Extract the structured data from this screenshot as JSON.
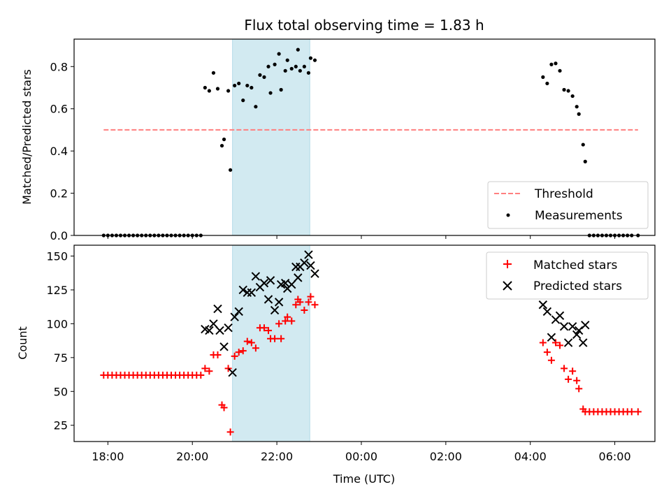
{
  "chart_data": [
    {
      "type": "scatter",
      "title": "Flux total observing time = 1.83 h",
      "ylabel": "Matched/Predicted stars",
      "xlabel": "",
      "x_units": "hours since 18:00 UTC (x axis spans 17:12 to 06:56)",
      "xlim": [
        -0.8,
        12.95
      ],
      "ylim": [
        0.0,
        0.93
      ],
      "yticks": [
        "0.0",
        "0.2",
        "0.4",
        "0.6",
        "0.8"
      ],
      "shaded_span": [
        2.95,
        4.78
      ],
      "threshold": {
        "name": "Threshold",
        "value": 0.5,
        "x_range": [
          -0.1,
          12.55
        ],
        "color": "#ff7f7f"
      },
      "legend": {
        "position": "lower-right",
        "entries": [
          "Threshold",
          "Measurements"
        ]
      },
      "series": [
        {
          "name": "Measurements",
          "marker": "dot",
          "color": "#000000",
          "points": [
            [
              -0.1,
              0
            ],
            [
              0.0,
              0
            ],
            [
              0.1,
              0
            ],
            [
              0.2,
              0
            ],
            [
              0.3,
              0
            ],
            [
              0.4,
              0
            ],
            [
              0.5,
              0
            ],
            [
              0.6,
              0
            ],
            [
              0.7,
              0
            ],
            [
              0.8,
              0
            ],
            [
              0.9,
              0
            ],
            [
              1.0,
              0
            ],
            [
              1.1,
              0
            ],
            [
              1.2,
              0
            ],
            [
              1.3,
              0
            ],
            [
              1.4,
              0
            ],
            [
              1.5,
              0
            ],
            [
              1.6,
              0
            ],
            [
              1.7,
              0
            ],
            [
              1.8,
              0
            ],
            [
              1.9,
              0
            ],
            [
              2.0,
              0
            ],
            [
              2.1,
              0
            ],
            [
              2.2,
              0
            ],
            [
              2.3,
              0.7
            ],
            [
              2.4,
              0.685
            ],
            [
              2.5,
              0.77
            ],
            [
              2.6,
              0.695
            ],
            [
              2.7,
              0.425
            ],
            [
              2.75,
              0.455
            ],
            [
              2.85,
              0.685
            ],
            [
              2.9,
              0.31
            ],
            [
              3.0,
              0.71
            ],
            [
              3.1,
              0.72
            ],
            [
              3.2,
              0.64
            ],
            [
              3.3,
              0.71
            ],
            [
              3.4,
              0.7
            ],
            [
              3.5,
              0.61
            ],
            [
              3.6,
              0.76
            ],
            [
              3.7,
              0.75
            ],
            [
              3.8,
              0.8
            ],
            [
              3.85,
              0.675
            ],
            [
              3.95,
              0.81
            ],
            [
              4.05,
              0.86
            ],
            [
              4.1,
              0.69
            ],
            [
              4.2,
              0.78
            ],
            [
              4.25,
              0.83
            ],
            [
              4.35,
              0.79
            ],
            [
              4.45,
              0.8
            ],
            [
              4.5,
              0.88
            ],
            [
              4.55,
              0.78
            ],
            [
              4.65,
              0.8
            ],
            [
              4.75,
              0.77
            ],
            [
              4.8,
              0.84
            ],
            [
              4.9,
              0.83
            ],
            [
              10.3,
              0.75
            ],
            [
              10.4,
              0.72
            ],
            [
              10.5,
              0.81
            ],
            [
              10.6,
              0.815
            ],
            [
              10.7,
              0.78
            ],
            [
              10.8,
              0.69
            ],
            [
              10.9,
              0.685
            ],
            [
              11.0,
              0.66
            ],
            [
              11.1,
              0.61
            ],
            [
              11.15,
              0.575
            ],
            [
              11.25,
              0.43
            ],
            [
              11.3,
              0.35
            ],
            [
              11.4,
              0
            ],
            [
              11.5,
              0
            ],
            [
              11.6,
              0
            ],
            [
              11.7,
              0
            ],
            [
              11.8,
              0
            ],
            [
              11.9,
              0
            ],
            [
              12.0,
              0
            ],
            [
              12.1,
              0
            ],
            [
              12.2,
              0
            ],
            [
              12.3,
              0
            ],
            [
              12.4,
              0
            ],
            [
              12.55,
              0
            ]
          ]
        }
      ]
    },
    {
      "type": "scatter",
      "title": "",
      "ylabel": "Count",
      "xlabel": "Time (UTC)",
      "x_units": "hours since 18:00 UTC (x axis spans 17:12 to 06:56)",
      "xlim": [
        -0.8,
        12.95
      ],
      "ylim": [
        13,
        158
      ],
      "yticks": [
        "25",
        "50",
        "75",
        "100",
        "125",
        "150"
      ],
      "xticks": [
        "18:00",
        "20:00",
        "22:00",
        "00:00",
        "02:00",
        "04:00",
        "06:00"
      ],
      "shaded_span": [
        2.95,
        4.78
      ],
      "legend": {
        "position": "top-right",
        "entries": [
          "Matched stars",
          "Predicted stars"
        ]
      },
      "series": [
        {
          "name": "Matched stars",
          "marker": "plus",
          "color": "#ff0000",
          "points": [
            [
              -0.1,
              62
            ],
            [
              0.0,
              62
            ],
            [
              0.1,
              62
            ],
            [
              0.2,
              62
            ],
            [
              0.3,
              62
            ],
            [
              0.4,
              62
            ],
            [
              0.5,
              62
            ],
            [
              0.6,
              62
            ],
            [
              0.7,
              62
            ],
            [
              0.8,
              62
            ],
            [
              0.9,
              62
            ],
            [
              1.0,
              62
            ],
            [
              1.1,
              62
            ],
            [
              1.2,
              62
            ],
            [
              1.3,
              62
            ],
            [
              1.4,
              62
            ],
            [
              1.5,
              62
            ],
            [
              1.6,
              62
            ],
            [
              1.7,
              62
            ],
            [
              1.8,
              62
            ],
            [
              1.9,
              62
            ],
            [
              2.0,
              62
            ],
            [
              2.1,
              62
            ],
            [
              2.2,
              62
            ],
            [
              2.3,
              67
            ],
            [
              2.4,
              65
            ],
            [
              2.5,
              77
            ],
            [
              2.6,
              77
            ],
            [
              2.7,
              40
            ],
            [
              2.75,
              38
            ],
            [
              2.85,
              67
            ],
            [
              2.9,
              20
            ],
            [
              3.0,
              76
            ],
            [
              3.1,
              79
            ],
            [
              3.2,
              80
            ],
            [
              3.3,
              87
            ],
            [
              3.4,
              86
            ],
            [
              3.5,
              82
            ],
            [
              3.6,
              97
            ],
            [
              3.7,
              97
            ],
            [
              3.8,
              95
            ],
            [
              3.85,
              89
            ],
            [
              3.95,
              89
            ],
            [
              4.05,
              100
            ],
            [
              4.1,
              89
            ],
            [
              4.2,
              102
            ],
            [
              4.25,
              105
            ],
            [
              4.35,
              102
            ],
            [
              4.45,
              114
            ],
            [
              4.5,
              118
            ],
            [
              4.55,
              116
            ],
            [
              4.65,
              110
            ],
            [
              4.75,
              116
            ],
            [
              4.8,
              120
            ],
            [
              4.9,
              114
            ],
            [
              10.3,
              86
            ],
            [
              10.4,
              79
            ],
            [
              10.5,
              73
            ],
            [
              10.6,
              86
            ],
            [
              10.7,
              84
            ],
            [
              10.8,
              67
            ],
            [
              10.9,
              59
            ],
            [
              11.0,
              65
            ],
            [
              11.1,
              58
            ],
            [
              11.15,
              52
            ],
            [
              11.25,
              37
            ],
            [
              11.3,
              35
            ],
            [
              11.4,
              35
            ],
            [
              11.5,
              35
            ],
            [
              11.6,
              35
            ],
            [
              11.7,
              35
            ],
            [
              11.8,
              35
            ],
            [
              11.9,
              35
            ],
            [
              12.0,
              35
            ],
            [
              12.1,
              35
            ],
            [
              12.2,
              35
            ],
            [
              12.3,
              35
            ],
            [
              12.4,
              35
            ],
            [
              12.55,
              35
            ]
          ]
        },
        {
          "name": "Predicted stars",
          "marker": "x",
          "color": "#000000",
          "points": [
            [
              2.3,
              96
            ],
            [
              2.4,
              95
            ],
            [
              2.5,
              100
            ],
            [
              2.6,
              111
            ],
            [
              2.65,
              95
            ],
            [
              2.75,
              83
            ],
            [
              2.85,
              97
            ],
            [
              2.95,
              64
            ],
            [
              3.0,
              105
            ],
            [
              3.1,
              109
            ],
            [
              3.2,
              125
            ],
            [
              3.3,
              123
            ],
            [
              3.4,
              123
            ],
            [
              3.5,
              135
            ],
            [
              3.6,
              127
            ],
            [
              3.7,
              130
            ],
            [
              3.8,
              118
            ],
            [
              3.85,
              132
            ],
            [
              3.95,
              110
            ],
            [
              4.05,
              116
            ],
            [
              4.1,
              129
            ],
            [
              4.2,
              130
            ],
            [
              4.25,
              126
            ],
            [
              4.35,
              129
            ],
            [
              4.45,
              142
            ],
            [
              4.5,
              134
            ],
            [
              4.55,
              142
            ],
            [
              4.65,
              145
            ],
            [
              4.75,
              151
            ],
            [
              4.8,
              143
            ],
            [
              4.9,
              137
            ],
            [
              10.3,
              114
            ],
            [
              10.4,
              109
            ],
            [
              10.5,
              90
            ],
            [
              10.6,
              103
            ],
            [
              10.7,
              106
            ],
            [
              10.8,
              98
            ],
            [
              10.9,
              86
            ],
            [
              11.0,
              98
            ],
            [
              11.1,
              92
            ],
            [
              11.15,
              95
            ],
            [
              11.25,
              86
            ],
            [
              11.3,
              99
            ]
          ]
        }
      ]
    }
  ]
}
